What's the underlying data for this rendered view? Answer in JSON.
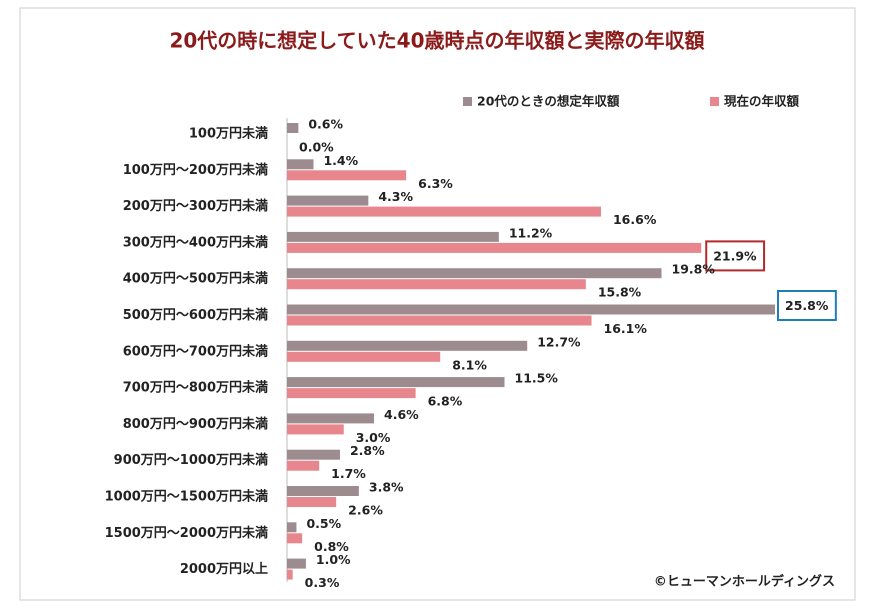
{
  "chart_data": {
    "type": "bar",
    "orientation": "horizontal",
    "title": "20代の時に想定していた40歳時点の年収額と実際の年収額",
    "categories": [
      "100万円未満",
      "100万円～200万円未満",
      "200万円～300万円未満",
      "300万円～400万円未満",
      "400万円～500万円未満",
      "500万円～600万円未満",
      "600万円～700万円未満",
      "700万円～800万円未満",
      "800万円～900万円未満",
      "900万円～1000万円未満",
      "1000万円～1500万円未満",
      "1500万円～2000万円未満",
      "2000万円以上"
    ],
    "series": [
      {
        "name": "20代のときの想定年収額",
        "color": "#9d8c8f",
        "highlight_max_color": "#1f7fb5",
        "values": [
          0.6,
          1.4,
          4.3,
          11.2,
          19.8,
          25.8,
          12.7,
          11.5,
          4.6,
          2.8,
          3.8,
          0.5,
          1.0
        ],
        "value_labels": [
          "0.6%",
          "1.4%",
          "4.3%",
          "11.2%",
          "19.8%",
          "25.8%",
          "12.7%",
          "11.5%",
          "4.6%",
          "2.8%",
          "3.8%",
          "0.5%",
          "1.0%"
        ]
      },
      {
        "name": "現在の年収額",
        "color": "#e8868e",
        "highlight_max_color": "#b22a2a",
        "values": [
          0.0,
          6.3,
          16.6,
          21.9,
          15.8,
          16.1,
          8.1,
          6.8,
          3.0,
          1.7,
          2.6,
          0.8,
          0.3
        ],
        "value_labels": [
          "0.0%",
          "6.3%",
          "16.6%",
          "21.9%",
          "15.8%",
          "16.1%",
          "8.1%",
          "6.8%",
          "3.0%",
          "1.7%",
          "2.6%",
          "0.8%",
          "0.3%"
        ]
      }
    ],
    "legend": "top-right",
    "source": "©ヒューマンホールディングス"
  }
}
